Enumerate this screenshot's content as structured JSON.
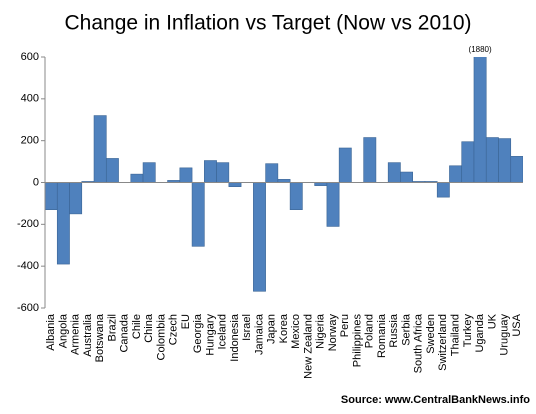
{
  "chart_data": {
    "type": "bar",
    "title": "Change in Inflation vs Target (Now vs 2010)",
    "categories": [
      "Albania",
      "Angola",
      "Armenia",
      "Australia",
      "Botswana",
      "Brazil",
      "Canada",
      "Chile",
      "China",
      "Colombia",
      "Czech",
      "EU",
      "Georgia",
      "Hungary",
      "Iceland",
      "Indonesia",
      "Israel",
      "Jamaica",
      "Japan",
      "Korea",
      "Mexico",
      "New Zealand",
      "Nigeria",
      "Norway",
      "Peru",
      "Philippines",
      "Poland",
      "Romania",
      "Russia",
      "Serbia",
      "South Africa",
      "Sweden",
      "Switzerland",
      "Thailand",
      "Turkey",
      "Uganda",
      "UK",
      "Uruguay",
      "USA"
    ],
    "values": [
      -130,
      -390,
      -150,
      5,
      320,
      115,
      0,
      40,
      95,
      0,
      10,
      70,
      -305,
      105,
      95,
      -20,
      0,
      -520,
      90,
      15,
      -130,
      0,
      -15,
      -210,
      165,
      0,
      215,
      0,
      95,
      50,
      5,
      5,
      -70,
      80,
      195,
      1880,
      215,
      210,
      125
    ],
    "value_labels": [
      null,
      null,
      null,
      null,
      null,
      null,
      null,
      null,
      null,
      null,
      null,
      null,
      null,
      null,
      null,
      null,
      null,
      null,
      null,
      null,
      null,
      null,
      null,
      null,
      null,
      null,
      null,
      null,
      null,
      null,
      null,
      null,
      null,
      null,
      null,
      "(1880)",
      null,
      null,
      null
    ],
    "color": "#4f81bd",
    "ylim": [
      -600,
      600
    ],
    "yticks": [
      -600,
      -400,
      -200,
      0,
      200,
      400,
      600
    ],
    "annotation": "Source: www.CentralBankNews.info"
  }
}
